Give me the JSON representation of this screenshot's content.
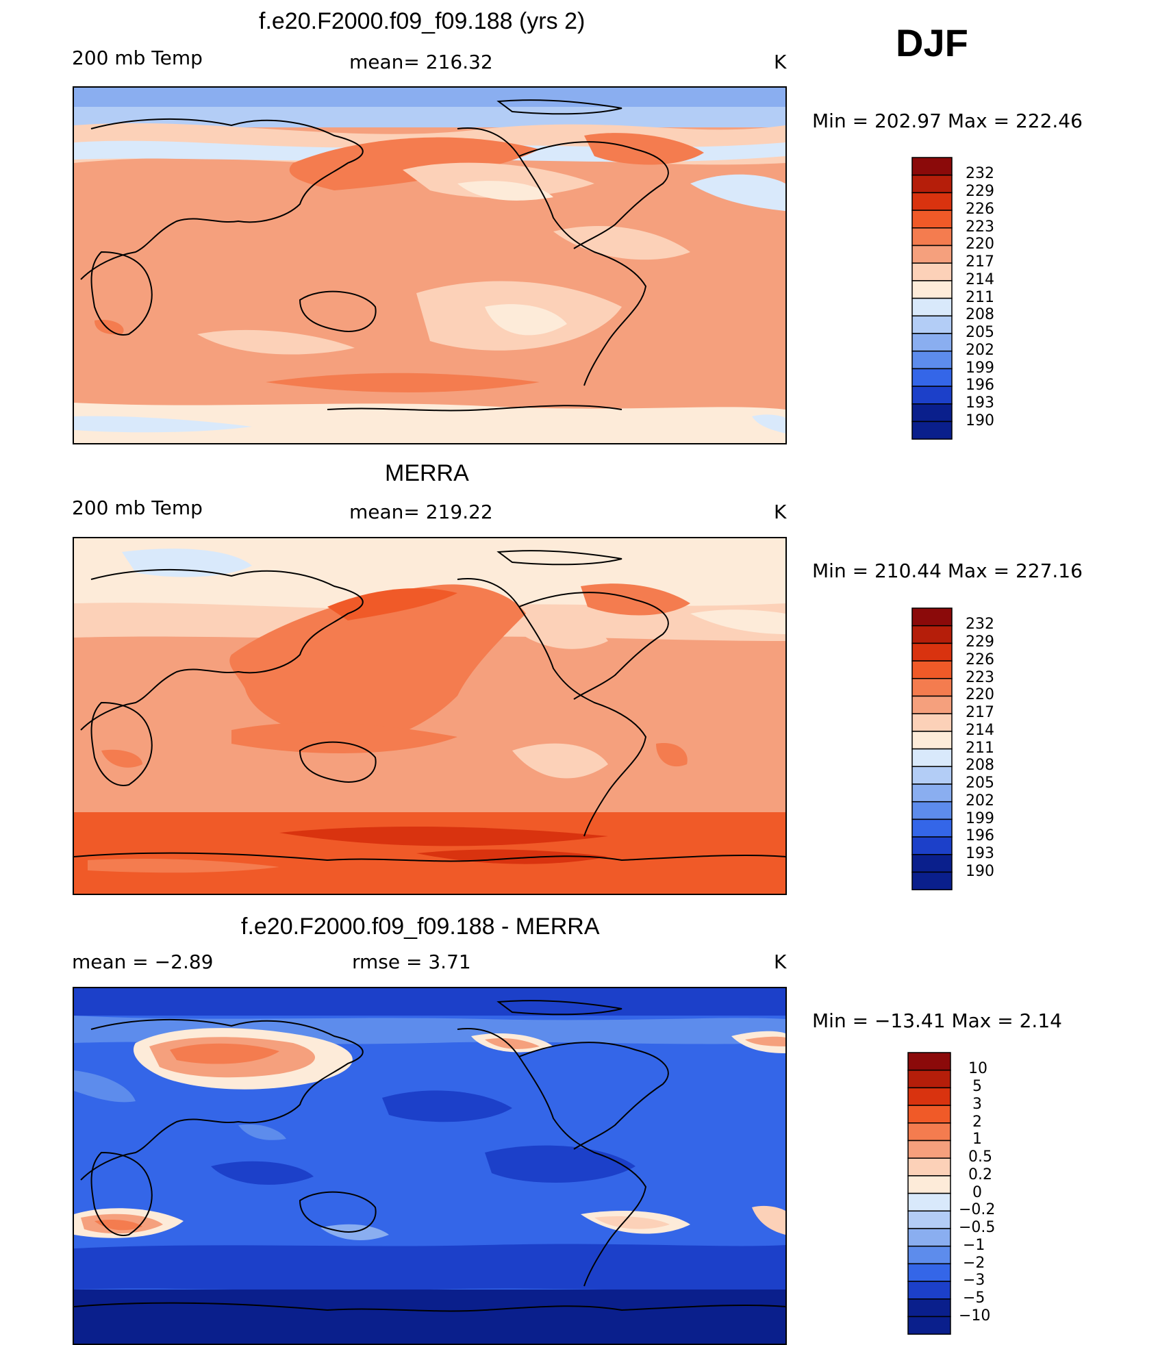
{
  "season": "DJF",
  "chart_data": [
    {
      "type": "heatmap",
      "title": "f.e20.F2000.f09_f09.188 (yrs 2)",
      "left_label": "200 mb Temp",
      "center_label": "mean=  216.32",
      "units": "K",
      "minmax": "Min  =  202.97  Max  =  222.46",
      "mean": 216.32,
      "min": 202.97,
      "max": 222.46,
      "colorbar_levels": [
        "232",
        "229",
        "226",
        "223",
        "220",
        "217",
        "214",
        "211",
        "208",
        "205",
        "202",
        "199",
        "196",
        "193",
        "190"
      ]
    },
    {
      "type": "heatmap",
      "title": "MERRA",
      "left_label": "200 mb Temp",
      "center_label": "mean=  219.22",
      "units": "K",
      "minmax": "Min  =  210.44  Max  =  227.16",
      "mean": 219.22,
      "min": 210.44,
      "max": 227.16,
      "colorbar_levels": [
        "232",
        "229",
        "226",
        "223",
        "220",
        "217",
        "214",
        "211",
        "208",
        "205",
        "202",
        "199",
        "196",
        "193",
        "190"
      ]
    },
    {
      "type": "heatmap",
      "title": "f.e20.F2000.f09_f09.188 - MERRA",
      "left_label": "mean  =    −2.89",
      "center_label": "rmse  =     3.71",
      "units": "K",
      "minmax": "Min  =  −13.41  Max  =       2.14",
      "mean": -2.89,
      "rmse": 3.71,
      "min": -13.41,
      "max": 2.14,
      "colorbar_levels": [
        "10",
        "5",
        "3",
        "2",
        "1",
        "0.5",
        "0.2",
        "0",
        "−0.2",
        "−0.5",
        "−1",
        "−2",
        "−3",
        "−5",
        "−10"
      ]
    }
  ],
  "colors": {
    "abs_scale": [
      "#8b0a0a",
      "#b51e0a",
      "#d9330f",
      "#f05a28",
      "#f47c4f",
      "#f5a07d",
      "#fcd1b8",
      "#fdebd9",
      "#d9e9fb",
      "#b3cdf6",
      "#8aaef0",
      "#5d8cec",
      "#3466e8",
      "#1c40c9",
      "#0a1f8c"
    ],
    "diff_scale": [
      "#8b0a0a",
      "#b51e0a",
      "#d9330f",
      "#f05a28",
      "#f47c4f",
      "#f5a07d",
      "#fcd1b8",
      "#fdebd9",
      "#d9e9fb",
      "#b3cdf6",
      "#8aaef0",
      "#5d8cec",
      "#3466e8",
      "#1c40c9",
      "#0a1f8c"
    ]
  }
}
